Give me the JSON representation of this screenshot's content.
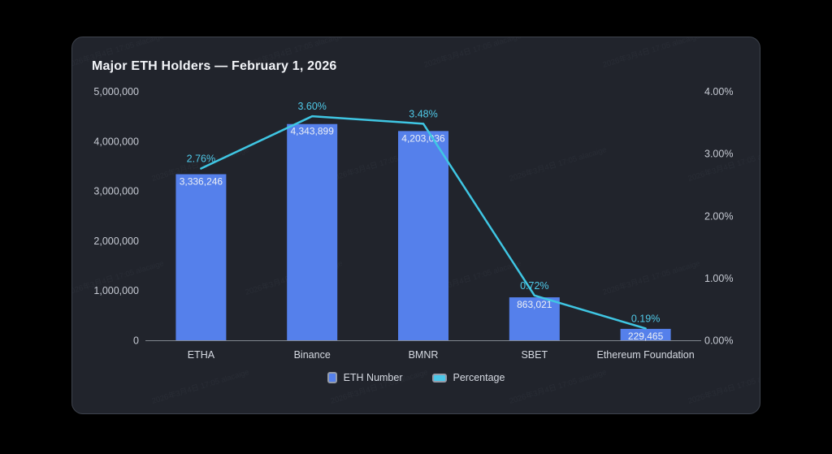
{
  "card": {
    "background": "#21242C",
    "border_color": "#3E434D"
  },
  "watermark": {
    "text": "2026年3月4日 17:05 alacaige"
  },
  "legend": {
    "items": [
      {
        "label": "ETH Number",
        "color": "#5580EB",
        "shape": "bar"
      },
      {
        "label": "Percentage",
        "color": "#4BC6E8",
        "shape": "line"
      }
    ],
    "swatch_border": "#959CA9",
    "position": "bottom-center"
  },
  "chart_data": {
    "type": "combo_bar_line",
    "title": "Major ETH Holders — February 1, 2026",
    "categories": [
      "ETHA",
      "Binance",
      "BMNR",
      "SBET",
      "Ethereum Foundation"
    ],
    "series": [
      {
        "name": "ETH Number",
        "type": "bar",
        "y_axis": "left",
        "color": "#5580EB",
        "values": [
          3336246,
          4343899,
          4203036,
          863021,
          229465
        ],
        "data_labels": [
          "3,336,246",
          "4,343,899",
          "4,203,036",
          "863,021",
          "229,465"
        ],
        "data_label_color": "#ECEFF5"
      },
      {
        "name": "Percentage",
        "type": "line",
        "y_axis": "right",
        "color": "#3FC6E3",
        "values": [
          2.76,
          3.6,
          3.48,
          0.72,
          0.19
        ],
        "data_labels": [
          "2.76%",
          "3.60%",
          "3.48%",
          "0.72%",
          "0.19%"
        ],
        "data_label_color": "#4FC9E8"
      }
    ],
    "left_axis": {
      "min": 0,
      "max": 5000000,
      "ticks": [
        {
          "value": 5000000,
          "label": "5,000,000"
        },
        {
          "value": 4000000,
          "label": "4,000,000"
        },
        {
          "value": 3000000,
          "label": "3,000,000"
        },
        {
          "value": 2000000,
          "label": "2,000,000"
        },
        {
          "value": 1000000,
          "label": "1,000,000"
        },
        {
          "value": 0,
          "label": "0"
        }
      ]
    },
    "right_axis": {
      "min": 0,
      "max": 4,
      "ticks": [
        {
          "value": 4,
          "label": "4.00%"
        },
        {
          "value": 3,
          "label": "3.00%"
        },
        {
          "value": 2,
          "label": "2.00%"
        },
        {
          "value": 1,
          "label": "1.00%"
        },
        {
          "value": 0,
          "label": "0.00%"
        }
      ]
    },
    "grid": false,
    "axis_line_color": "#81868F",
    "tick_label_color": "#C7CBD4",
    "category_label_color": "#D6DAE2"
  }
}
